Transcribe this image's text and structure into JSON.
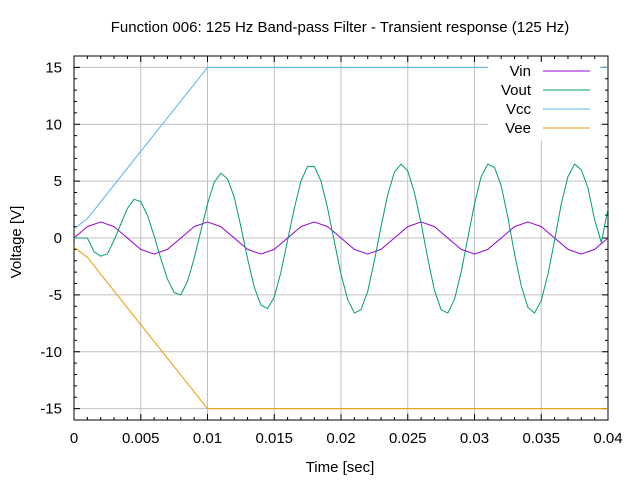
{
  "chart_data": {
    "type": "line",
    "title": "Function 006: 125 Hz Band-pass Filter - Transient response (125 Hz)",
    "xlabel": "Time [sec]",
    "ylabel": "Voltage [V]",
    "xlim": [
      0,
      0.04
    ],
    "ylim": [
      -16,
      16
    ],
    "x_ticks": [
      0,
      0.005,
      0.01,
      0.015,
      0.02,
      0.025,
      0.03,
      0.035,
      0.04
    ],
    "x_tick_labels": [
      "0",
      "0.005",
      "0.01",
      "0.015",
      "0.02",
      "0.025",
      "0.03",
      "0.035",
      "0.04"
    ],
    "y_ticks": [
      -15,
      -10,
      -5,
      0,
      5,
      10,
      15
    ],
    "y_tick_labels": [
      "-15",
      "-10",
      "-5",
      "0",
      "5",
      "10",
      "15"
    ],
    "grid": true,
    "legend_position": "top-right",
    "series": [
      {
        "name": "Vin",
        "color": "#9400d3",
        "x": [
          0,
          0.001,
          0.002,
          0.003,
          0.004,
          0.005,
          0.006,
          0.007,
          0.008,
          0.009,
          0.01,
          0.011,
          0.012,
          0.013,
          0.014,
          0.015,
          0.016,
          0.017,
          0.018,
          0.019,
          0.02,
          0.021,
          0.022,
          0.023,
          0.024,
          0.025,
          0.026,
          0.027,
          0.028,
          0.029,
          0.03,
          0.031,
          0.032,
          0.033,
          0.034,
          0.035,
          0.036,
          0.037,
          0.038,
          0.039,
          0.04
        ],
        "y": [
          0,
          1.0,
          1.41,
          1.0,
          0,
          -1.0,
          -1.41,
          -1.0,
          0,
          1.0,
          1.41,
          1.0,
          0,
          -1.0,
          -1.41,
          -1.0,
          0,
          1.0,
          1.41,
          1.0,
          0,
          -1.0,
          -1.41,
          -1.0,
          0,
          1.0,
          1.41,
          1.0,
          0,
          -1.0,
          -1.41,
          -1.0,
          0,
          1.0,
          1.41,
          1.0,
          0,
          -1.0,
          -1.41,
          -1.0,
          0
        ]
      },
      {
        "name": "Vout",
        "color": "#009e73",
        "x": [
          0,
          0.001,
          0.0015,
          0.002,
          0.0025,
          0.003,
          0.0035,
          0.004,
          0.0045,
          0.005,
          0.0055,
          0.006,
          0.0065,
          0.007,
          0.0075,
          0.008,
          0.0085,
          0.009,
          0.0095,
          0.01,
          0.0105,
          0.011,
          0.0115,
          0.012,
          0.0125,
          0.013,
          0.0135,
          0.014,
          0.0145,
          0.015,
          0.0155,
          0.016,
          0.0165,
          0.017,
          0.0175,
          0.018,
          0.0185,
          0.019,
          0.0195,
          0.02,
          0.0205,
          0.021,
          0.0215,
          0.022,
          0.0225,
          0.023,
          0.0235,
          0.024,
          0.0245,
          0.025,
          0.0255,
          0.026,
          0.0265,
          0.027,
          0.0275,
          0.028,
          0.0285,
          0.029,
          0.0295,
          0.03,
          0.0305,
          0.031,
          0.0315,
          0.032,
          0.0325,
          0.033,
          0.0335,
          0.034,
          0.0345,
          0.035,
          0.0355,
          0.036,
          0.0365,
          0.037,
          0.0375,
          0.038,
          0.0385,
          0.039,
          0.0395,
          0.04
        ],
        "y": [
          0,
          0,
          -1.2,
          -1.6,
          -1.4,
          -0.2,
          1.2,
          2.6,
          3.4,
          3.2,
          2.0,
          0.2,
          -1.8,
          -3.6,
          -4.8,
          -5.0,
          -3.8,
          -1.8,
          0.6,
          3.0,
          4.9,
          5.7,
          5.2,
          3.6,
          1.0,
          -1.8,
          -4.3,
          -5.9,
          -6.2,
          -5.2,
          -3.0,
          -0.2,
          2.6,
          5.0,
          6.3,
          6.3,
          5.0,
          2.6,
          -0.3,
          -3.2,
          -5.4,
          -6.6,
          -6.3,
          -4.7,
          -2.0,
          1.0,
          3.8,
          5.8,
          6.5,
          5.9,
          4.0,
          1.3,
          -1.8,
          -4.6,
          -6.3,
          -6.6,
          -5.4,
          -3.0,
          0,
          3.0,
          5.4,
          6.5,
          6.2,
          4.6,
          1.8,
          -1.4,
          -4.2,
          -6.1,
          -6.6,
          -5.5,
          -3.2,
          -0.2,
          3.0,
          5.4,
          6.5,
          6.0,
          4.4,
          1.6,
          -0.4,
          2.6
        ]
      },
      {
        "name": "Vcc",
        "color": "#56b4e9",
        "x": [
          0,
          0.001,
          0.01,
          0.04
        ],
        "y": [
          0.8,
          1.7,
          15,
          15
        ]
      },
      {
        "name": "Vee",
        "color": "#e69f00",
        "x": [
          0,
          0.001,
          0.01,
          0.04
        ],
        "y": [
          -0.8,
          -1.7,
          -15,
          -15
        ]
      }
    ]
  }
}
